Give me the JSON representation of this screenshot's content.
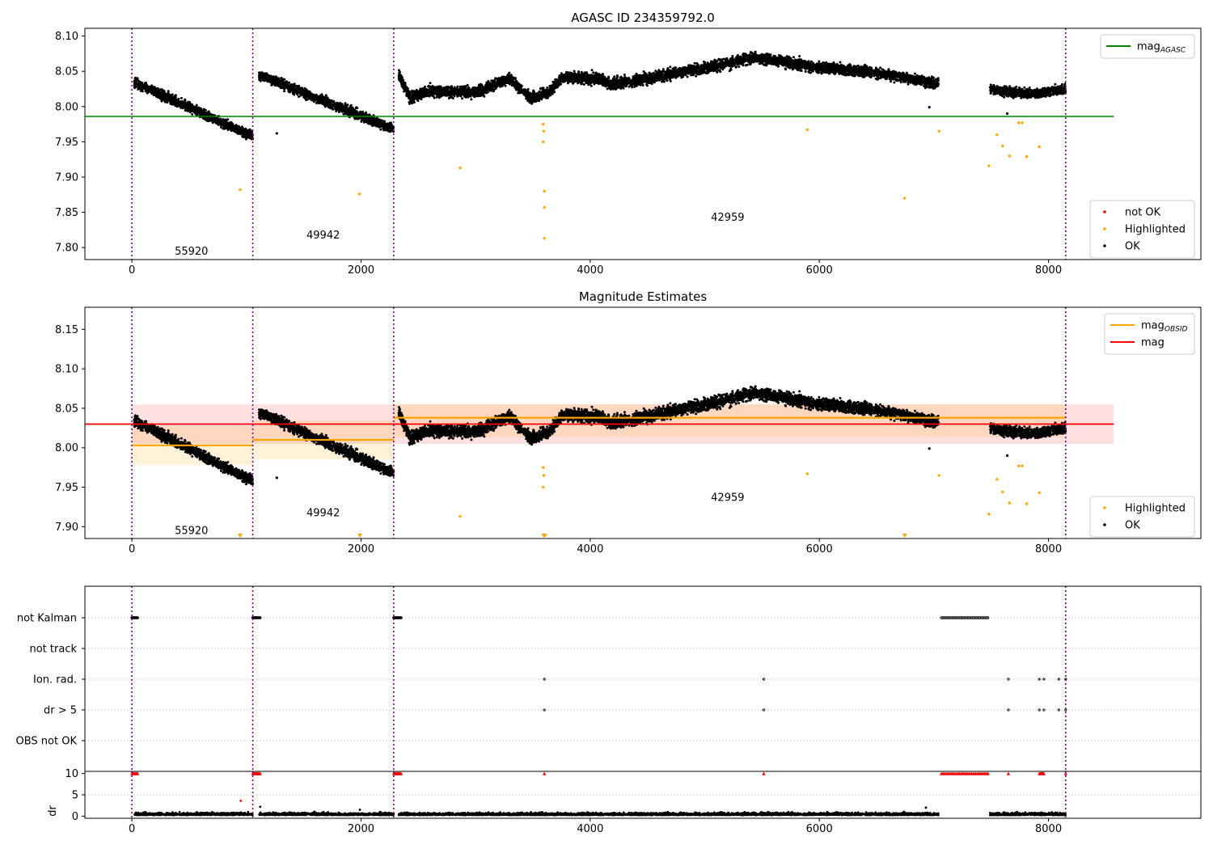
{
  "chart_data": [
    {
      "type": "scatter",
      "title": "AGASC ID 234359792.0",
      "xlim": [
        -410,
        9330
      ],
      "ylim": [
        7.783,
        8.111
      ],
      "xticks": [
        0,
        2000,
        4000,
        6000,
        8000
      ],
      "yticks": [
        7.8,
        7.85,
        7.9,
        7.95,
        8.0,
        8.05,
        8.1
      ],
      "vlines": [
        0,
        1055,
        2285,
        8150
      ],
      "hline": {
        "label": "mag",
        "label_sub": "AGASC",
        "y": 7.986,
        "x_range": [
          0,
          8570
        ],
        "color": "#008000"
      },
      "segments": [
        {
          "x_range": [
            20,
            1055
          ],
          "y_start": 8.034,
          "y_end": 7.958,
          "noise": 0.006
        },
        {
          "x_range": [
            1110,
            2285
          ],
          "y_start": 8.045,
          "y_end": 7.968,
          "noise": 0.006
        },
        {
          "x_range": [
            2330,
            7040
          ],
          "y_knots": [
            [
              2330,
              8.045
            ],
            [
              2430,
              8.012
            ],
            [
              2600,
              8.022
            ],
            [
              3000,
              8.02
            ],
            [
              3300,
              8.04
            ],
            [
              3480,
              8.012
            ],
            [
              3640,
              8.02
            ],
            [
              3760,
              8.042
            ],
            [
              4050,
              8.04
            ],
            [
              4200,
              8.032
            ],
            [
              4500,
              8.04
            ],
            [
              5000,
              8.055
            ],
            [
              5450,
              8.07
            ],
            [
              6000,
              8.055
            ],
            [
              6500,
              8.048
            ],
            [
              7040,
              8.032
            ]
          ],
          "noise": 0.007
        },
        {
          "x_range": [
            7490,
            8150
          ],
          "y_knots": [
            [
              7490,
              8.025
            ],
            [
              7700,
              8.02
            ],
            [
              7900,
              8.018
            ],
            [
              8150,
              8.025
            ]
          ],
          "noise": 0.006
        }
      ],
      "highlighted": [
        [
          945,
          7.882
        ],
        [
          1985,
          7.876
        ],
        [
          2865,
          7.913
        ],
        [
          3590,
          7.975
        ],
        [
          3590,
          7.95
        ],
        [
          3595,
          7.965
        ],
        [
          3600,
          7.88
        ],
        [
          3600,
          7.857
        ],
        [
          3600,
          7.813
        ],
        [
          5895,
          7.967
        ],
        [
          6745,
          7.87
        ],
        [
          7045,
          7.965
        ],
        [
          7480,
          7.916
        ],
        [
          7550,
          7.96
        ],
        [
          7600,
          7.944
        ],
        [
          7660,
          7.93
        ],
        [
          7740,
          7.977
        ],
        [
          7770,
          7.977
        ],
        [
          7810,
          7.929
        ],
        [
          7920,
          7.943
        ]
      ],
      "extra_ok": [
        [
          1265,
          7.962
        ],
        [
          6960,
          7.999
        ],
        [
          7640,
          7.99
        ]
      ],
      "obsid_labels": [
        {
          "text": "55920",
          "x": 520,
          "y": 7.795
        },
        {
          "text": "49942",
          "x": 1670,
          "y": 7.818
        },
        {
          "text": "42959",
          "x": 5200,
          "y": 7.843
        }
      ],
      "legend_upper": [
        {
          "label": "mag",
          "sub": "AGASC",
          "color": "#008000"
        }
      ],
      "legend_lower": [
        {
          "label": "not OK",
          "color": "#ff0000"
        },
        {
          "label": "Highlighted",
          "color": "#ffa500"
        },
        {
          "label": "OK",
          "color": "#000000"
        }
      ]
    },
    {
      "type": "scatter",
      "title": "Magnitude Estimates",
      "xlim": [
        -410,
        9330
      ],
      "ylim": [
        7.885,
        8.178
      ],
      "xticks": [
        0,
        2000,
        4000,
        6000,
        8000
      ],
      "yticks": [
        7.9,
        7.95,
        8.0,
        8.05,
        8.1,
        8.15
      ],
      "vlines": [
        0,
        1055,
        2285,
        8150
      ],
      "mag_line": {
        "label": "mag",
        "y": 8.03,
        "band": [
          8.005,
          8.055
        ],
        "x_range": [
          0,
          8570
        ],
        "color": "#ff0000"
      },
      "obsid_lines": [
        {
          "x_range": [
            0,
            1055
          ],
          "y": 8.003,
          "band": [
            7.978,
            8.028
          ]
        },
        {
          "x_range": [
            1055,
            2285
          ],
          "y": 8.01,
          "band": [
            7.985,
            8.035
          ]
        },
        {
          "x_range": [
            2285,
            8150
          ],
          "y": 8.038,
          "band": [
            8.013,
            8.055
          ]
        }
      ],
      "obsid_color": "#ffa500",
      "below_markers": [
        945,
        1990,
        3595,
        3605,
        6745
      ],
      "obsid_labels": [
        {
          "text": "55920",
          "x": 520,
          "y": 7.895
        },
        {
          "text": "49942",
          "x": 1670,
          "y": 7.918
        },
        {
          "text": "42959",
          "x": 5200,
          "y": 7.937
        }
      ],
      "legend_upper": [
        {
          "label": "mag",
          "sub": "OBSID",
          "color": "#ffa500"
        },
        {
          "label": "mag",
          "sub": "",
          "color": "#ff0000"
        }
      ],
      "legend_lower": [
        {
          "label": "Highlighted",
          "color": "#ffa500"
        },
        {
          "label": "OK",
          "color": "#000000"
        }
      ]
    },
    {
      "type": "scatter",
      "title": "",
      "xlim": [
        -410,
        9330
      ],
      "flag_rows": [
        "not Kalman",
        "not track",
        "Ion. rad.",
        "dr > 5",
        "OBS not OK"
      ],
      "flag_points": {
        "not Kalman": [
          [
            0,
            50
          ],
          [
            1055,
            1120
          ],
          [
            2285,
            2350
          ],
          [
            7065,
            7480
          ]
        ],
        "Ion. rad.": [
          3600,
          5515,
          7650,
          7920,
          7960,
          8090,
          8150
        ],
        "dr > 5": [
          3600,
          5515,
          7650,
          7920,
          7960,
          8090,
          8150
        ]
      },
      "dr_ylabel": "dr",
      "dr_yticks": [
        0,
        5,
        10
      ],
      "dr_ylim": [
        -0.5,
        10.5
      ],
      "dr_red": [
        [
          0,
          50
        ],
        [
          1055,
          1120
        ],
        [
          2285,
          2350
        ],
        [
          3600,
          3600
        ],
        [
          5515,
          5515
        ],
        [
          7065,
          7480
        ],
        [
          7650,
          7650
        ],
        [
          7920,
          7960
        ],
        [
          8150,
          8150
        ]
      ],
      "dr_outliers": [
        [
          950,
          3.6
        ],
        [
          1120,
          2.2
        ],
        [
          1990,
          1.5
        ],
        [
          6930,
          2.0
        ]
      ],
      "xticks": [
        0,
        2000,
        4000,
        6000,
        8000
      ]
    }
  ]
}
